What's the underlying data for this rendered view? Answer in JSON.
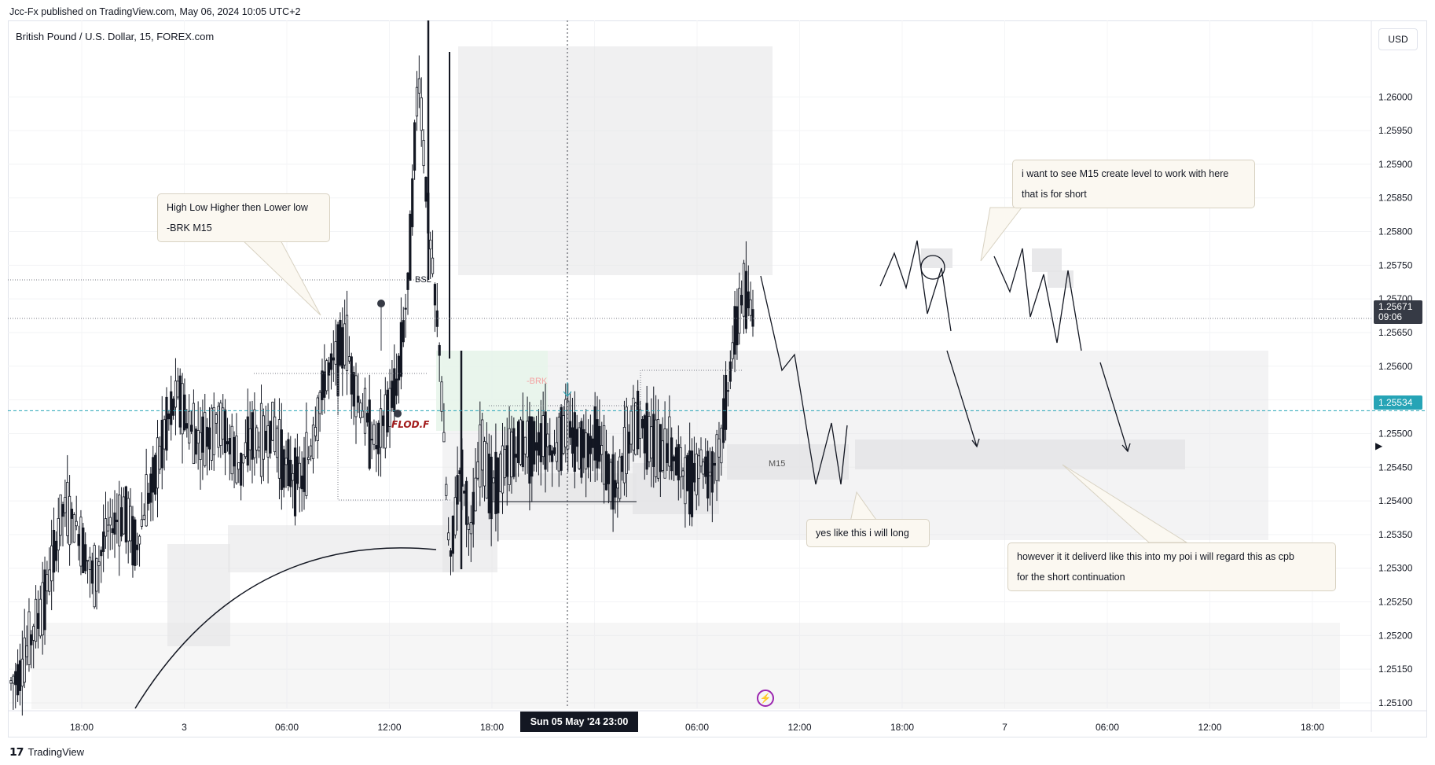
{
  "header": {
    "published": "Jcc-Fx published on TradingView.com, May 06, 2024 10:05 UTC+2"
  },
  "chart_header": {
    "symbol": "British Pound / U.S. Dollar, 15, FOREX.com",
    "currency": "USD"
  },
  "footer": {
    "brand": "TradingView",
    "logo": "tradingview-logo"
  },
  "labels": {
    "bsl": "BSL",
    "brk": "-BRK",
    "flod": "FLOD.F",
    "m15": "M15",
    "current_price": "1.25671",
    "countdown": "09:06",
    "crosshair_price": "1.25534",
    "crosshair_date": "Sun 05 May '24   23:00"
  },
  "notes": {
    "high_low": [
      "High  Low  Higher then Lower low",
      "-BRK M15"
    ],
    "m15_level": [
      "i want to see M15 create level to work with here",
      "that is for short"
    ],
    "long": [
      "yes like this i will long"
    ],
    "cpb": [
      "however it it deliverd like this into my poi i will regard this as cpb",
      "for the short continuation"
    ]
  },
  "colors": {
    "up": "#131722",
    "down": "#131722",
    "zone_gray": "#e4e4e6",
    "zone_green": "#e6f4ea",
    "crosshair": "#26a4b6",
    "price_tag": "#363a45",
    "brk_text": "#f4a3a3",
    "flod_text": "#a21b1b",
    "accent_bolt": "#9c27b0"
  },
  "icons": {
    "alert": "lightning-icon",
    "scroll": "play-icon"
  },
  "chart_data": {
    "type": "candlestick",
    "title": "British Pound / U.S. Dollar, 15, FOREX.com",
    "y_ticks": [
      "1.26000",
      "1.25950",
      "1.25900",
      "1.25850",
      "1.25800",
      "1.25750",
      "1.25700",
      "1.25650",
      "1.25600",
      "1.25550",
      "1.25500",
      "1.25450",
      "1.25400",
      "1.25350",
      "1.25300",
      "1.25250",
      "1.25200",
      "1.25150",
      "1.25100"
    ],
    "x_ticks": [
      "18:00",
      "3",
      "06:00",
      "12:00",
      "18:00",
      "",
      "06:00",
      "12:00",
      "18:00",
      "7",
      "06:00",
      "12:00",
      "18:00"
    ],
    "ylim": [
      1.251,
      1.2604
    ],
    "grid": true,
    "current_price": 1.25671,
    "crosshair_price": 1.25534,
    "ohlc_path": [
      1.2513,
      1.2515,
      1.252,
      1.2524,
      1.2531,
      1.2539,
      1.2537,
      1.2533,
      1.2528,
      1.2535,
      1.2537,
      1.2538,
      1.2533,
      1.254,
      1.2545,
      1.2552,
      1.2556,
      1.2551,
      1.2549,
      1.255,
      1.2552,
      1.2548,
      1.2545,
      1.255,
      1.2548,
      1.2551,
      1.2546,
      1.2544,
      1.2543,
      1.255,
      1.2558,
      1.2561,
      1.2564,
      1.2556,
      1.2552,
      1.2548,
      1.2553,
      1.2558,
      1.2572,
      1.2604,
      1.258,
      1.2563,
      1.253,
      1.2546,
      1.2535,
      1.2548,
      1.2542,
      1.2544,
      1.2547,
      1.2549,
      1.2548,
      1.255,
      1.2547,
      1.2551,
      1.2549,
      1.2548,
      1.255,
      1.2545,
      1.2541,
      1.2549,
      1.2552,
      1.255,
      1.2547,
      1.2548,
      1.2545,
      1.2543,
      1.2546,
      1.2544,
      1.2549,
      1.2562,
      1.2571,
      1.2568
    ]
  }
}
